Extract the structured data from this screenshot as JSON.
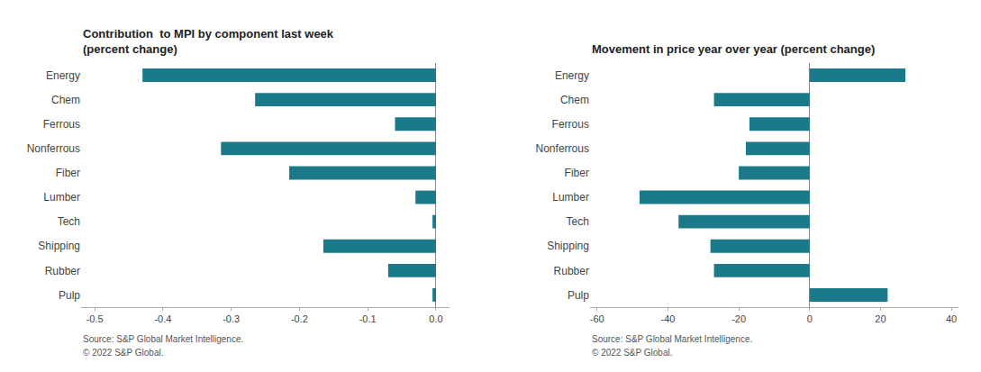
{
  "chart_data": [
    {
      "type": "bar",
      "orientation": "horizontal",
      "title": "Contribution  to MPI by component last week\n(percent change)",
      "categories": [
        "Energy",
        "Chem",
        "Ferrous",
        "Nonferrous",
        "Fiber",
        "Lumber",
        "Tech",
        "Shipping",
        "Rubber",
        "Pulp"
      ],
      "values": [
        -0.43,
        -0.265,
        -0.06,
        -0.315,
        -0.215,
        -0.03,
        -0.005,
        -0.165,
        -0.07,
        -0.005
      ],
      "color": "#1a7a8a",
      "xlim": [
        -0.52,
        0.02
      ],
      "xticks": [
        -0.5,
        -0.4,
        -0.3,
        -0.2,
        -0.1,
        {
          "value": 0,
          "label": "0.0"
        }
      ],
      "grid": false,
      "annotations": [
        "Source: S&P Global Market Intelligence.",
        "© 2022 S&P Global."
      ]
    },
    {
      "type": "bar",
      "orientation": "horizontal",
      "title": "Movement in price year over year (percent change)",
      "categories": [
        "Energy",
        "Chem",
        "Ferrous",
        "Nonferrous",
        "Fiber",
        "Lumber",
        "Tech",
        "Shipping",
        "Rubber",
        "Pulp"
      ],
      "values": [
        27,
        -27,
        -17,
        -18,
        -20,
        -48,
        -37,
        -28,
        -27,
        22
      ],
      "color": "#1a7a8a",
      "xlim": [
        -62,
        42
      ],
      "xticks": [
        -60,
        -40,
        -20,
        0,
        20,
        40
      ],
      "grid": false,
      "annotations": [
        "Source: S&P Global Market Intelligence.",
        "© 2022 S&P Global."
      ]
    }
  ]
}
